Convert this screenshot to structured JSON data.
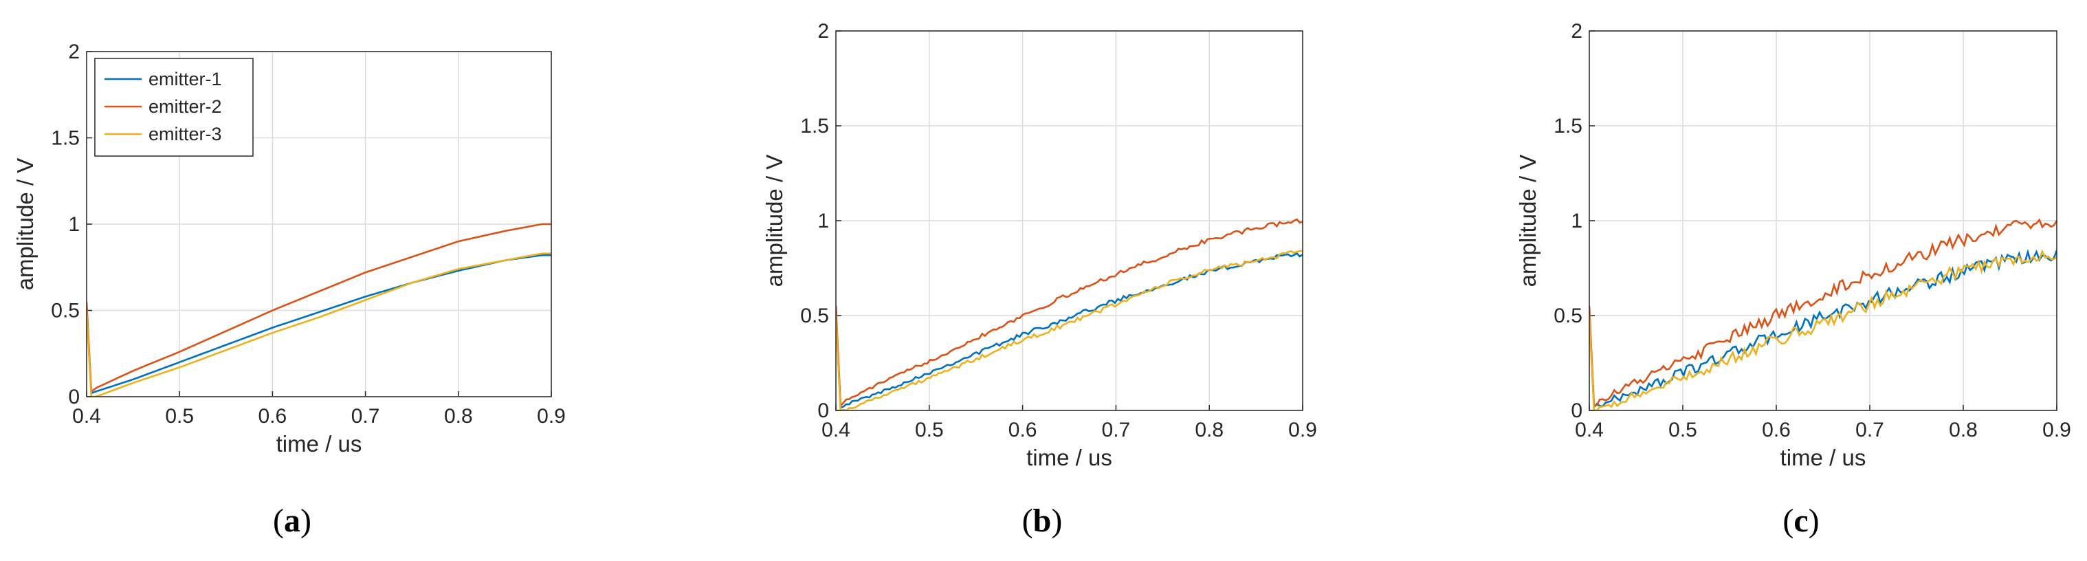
{
  "chart_data": [
    {
      "type": "line",
      "panel_label": "a",
      "xlabel": "time / us",
      "ylabel": "amplitude / V",
      "xlim": [
        0.4,
        0.9
      ],
      "ylim": [
        0,
        2
      ],
      "xticks": [
        "0.4",
        "0.5",
        "0.6",
        "0.7",
        "0.8",
        "0.9"
      ],
      "yticks": [
        "0",
        "0.5",
        "1",
        "1.5",
        "2"
      ],
      "grid": true,
      "legend": "top-left",
      "noise": 0,
      "series": [
        {
          "name": "emitter-1",
          "color": "#0072BD",
          "x": [
            0.4,
            0.405,
            0.41,
            0.45,
            0.5,
            0.55,
            0.6,
            0.65,
            0.7,
            0.75,
            0.8,
            0.85,
            0.89,
            0.9
          ],
          "y": [
            0.5,
            0.02,
            0.03,
            0.1,
            0.2,
            0.3,
            0.4,
            0.49,
            0.58,
            0.66,
            0.73,
            0.79,
            0.82,
            0.82
          ]
        },
        {
          "name": "emitter-2",
          "color": "#D95319",
          "x": [
            0.4,
            0.405,
            0.41,
            0.45,
            0.5,
            0.55,
            0.6,
            0.65,
            0.7,
            0.75,
            0.8,
            0.85,
            0.89,
            0.9
          ],
          "y": [
            0.55,
            0.03,
            0.05,
            0.15,
            0.26,
            0.38,
            0.5,
            0.61,
            0.72,
            0.81,
            0.9,
            0.96,
            1.0,
            1.0
          ]
        },
        {
          "name": "emitter-3",
          "color": "#EDB120",
          "x": [
            0.4,
            0.405,
            0.41,
            0.45,
            0.5,
            0.55,
            0.6,
            0.65,
            0.7,
            0.75,
            0.8,
            0.85,
            0.89,
            0.9
          ],
          "y": [
            0.5,
            0.0,
            0.0,
            0.08,
            0.17,
            0.27,
            0.37,
            0.46,
            0.56,
            0.66,
            0.74,
            0.79,
            0.83,
            0.83
          ]
        }
      ]
    },
    {
      "type": "line",
      "panel_label": "b",
      "xlabel": "time / us",
      "ylabel": "amplitude / V",
      "xlim": [
        0.4,
        0.9
      ],
      "ylim": [
        0,
        2
      ],
      "xticks": [
        "0.4",
        "0.5",
        "0.6",
        "0.7",
        "0.8",
        "0.9"
      ],
      "yticks": [
        "0",
        "0.5",
        "1",
        "1.5",
        "2"
      ],
      "grid": true,
      "noise": 0.012,
      "series": [
        {
          "name": "emitter-1",
          "color": "#0072BD",
          "x": [
            0.4,
            0.405,
            0.41,
            0.45,
            0.5,
            0.55,
            0.6,
            0.65,
            0.7,
            0.75,
            0.8,
            0.85,
            0.89,
            0.9
          ],
          "y": [
            0.5,
            0.02,
            0.03,
            0.1,
            0.2,
            0.3,
            0.4,
            0.49,
            0.58,
            0.66,
            0.73,
            0.79,
            0.82,
            0.82
          ]
        },
        {
          "name": "emitter-2",
          "color": "#D95319",
          "x": [
            0.4,
            0.405,
            0.41,
            0.45,
            0.5,
            0.55,
            0.6,
            0.65,
            0.7,
            0.75,
            0.8,
            0.85,
            0.89,
            0.9
          ],
          "y": [
            0.55,
            0.03,
            0.05,
            0.15,
            0.26,
            0.38,
            0.5,
            0.61,
            0.72,
            0.81,
            0.9,
            0.96,
            1.0,
            1.0
          ]
        },
        {
          "name": "emitter-3",
          "color": "#EDB120",
          "x": [
            0.4,
            0.405,
            0.41,
            0.45,
            0.5,
            0.55,
            0.6,
            0.65,
            0.7,
            0.75,
            0.8,
            0.85,
            0.89,
            0.9
          ],
          "y": [
            0.5,
            0.0,
            0.0,
            0.08,
            0.17,
            0.27,
            0.37,
            0.46,
            0.56,
            0.66,
            0.74,
            0.79,
            0.83,
            0.83
          ]
        }
      ]
    },
    {
      "type": "line",
      "panel_label": "c",
      "xlabel": "time / us",
      "ylabel": "amplitude / V",
      "xlim": [
        0.4,
        0.9
      ],
      "ylim": [
        0,
        2
      ],
      "xticks": [
        "0.4",
        "0.5",
        "0.6",
        "0.7",
        "0.8",
        "0.9"
      ],
      "yticks": [
        "0",
        "0.5",
        "1",
        "1.5",
        "2"
      ],
      "grid": true,
      "noise": 0.035,
      "series": [
        {
          "name": "emitter-1",
          "color": "#0072BD",
          "x": [
            0.4,
            0.405,
            0.41,
            0.45,
            0.5,
            0.55,
            0.6,
            0.65,
            0.7,
            0.75,
            0.8,
            0.85,
            0.89,
            0.9
          ],
          "y": [
            0.5,
            0.02,
            0.03,
            0.1,
            0.2,
            0.3,
            0.4,
            0.49,
            0.58,
            0.66,
            0.73,
            0.79,
            0.82,
            0.82
          ]
        },
        {
          "name": "emitter-2",
          "color": "#D95319",
          "x": [
            0.4,
            0.405,
            0.41,
            0.45,
            0.5,
            0.55,
            0.6,
            0.65,
            0.7,
            0.75,
            0.8,
            0.85,
            0.89,
            0.9
          ],
          "y": [
            0.55,
            0.03,
            0.05,
            0.15,
            0.26,
            0.38,
            0.5,
            0.61,
            0.72,
            0.81,
            0.9,
            0.96,
            1.0,
            1.0
          ]
        },
        {
          "name": "emitter-3",
          "color": "#EDB120",
          "x": [
            0.4,
            0.405,
            0.41,
            0.45,
            0.5,
            0.55,
            0.6,
            0.65,
            0.7,
            0.75,
            0.8,
            0.85,
            0.89,
            0.9
          ],
          "y": [
            0.5,
            0.0,
            0.0,
            0.08,
            0.17,
            0.27,
            0.37,
            0.46,
            0.56,
            0.66,
            0.74,
            0.79,
            0.83,
            0.83
          ]
        }
      ]
    }
  ]
}
